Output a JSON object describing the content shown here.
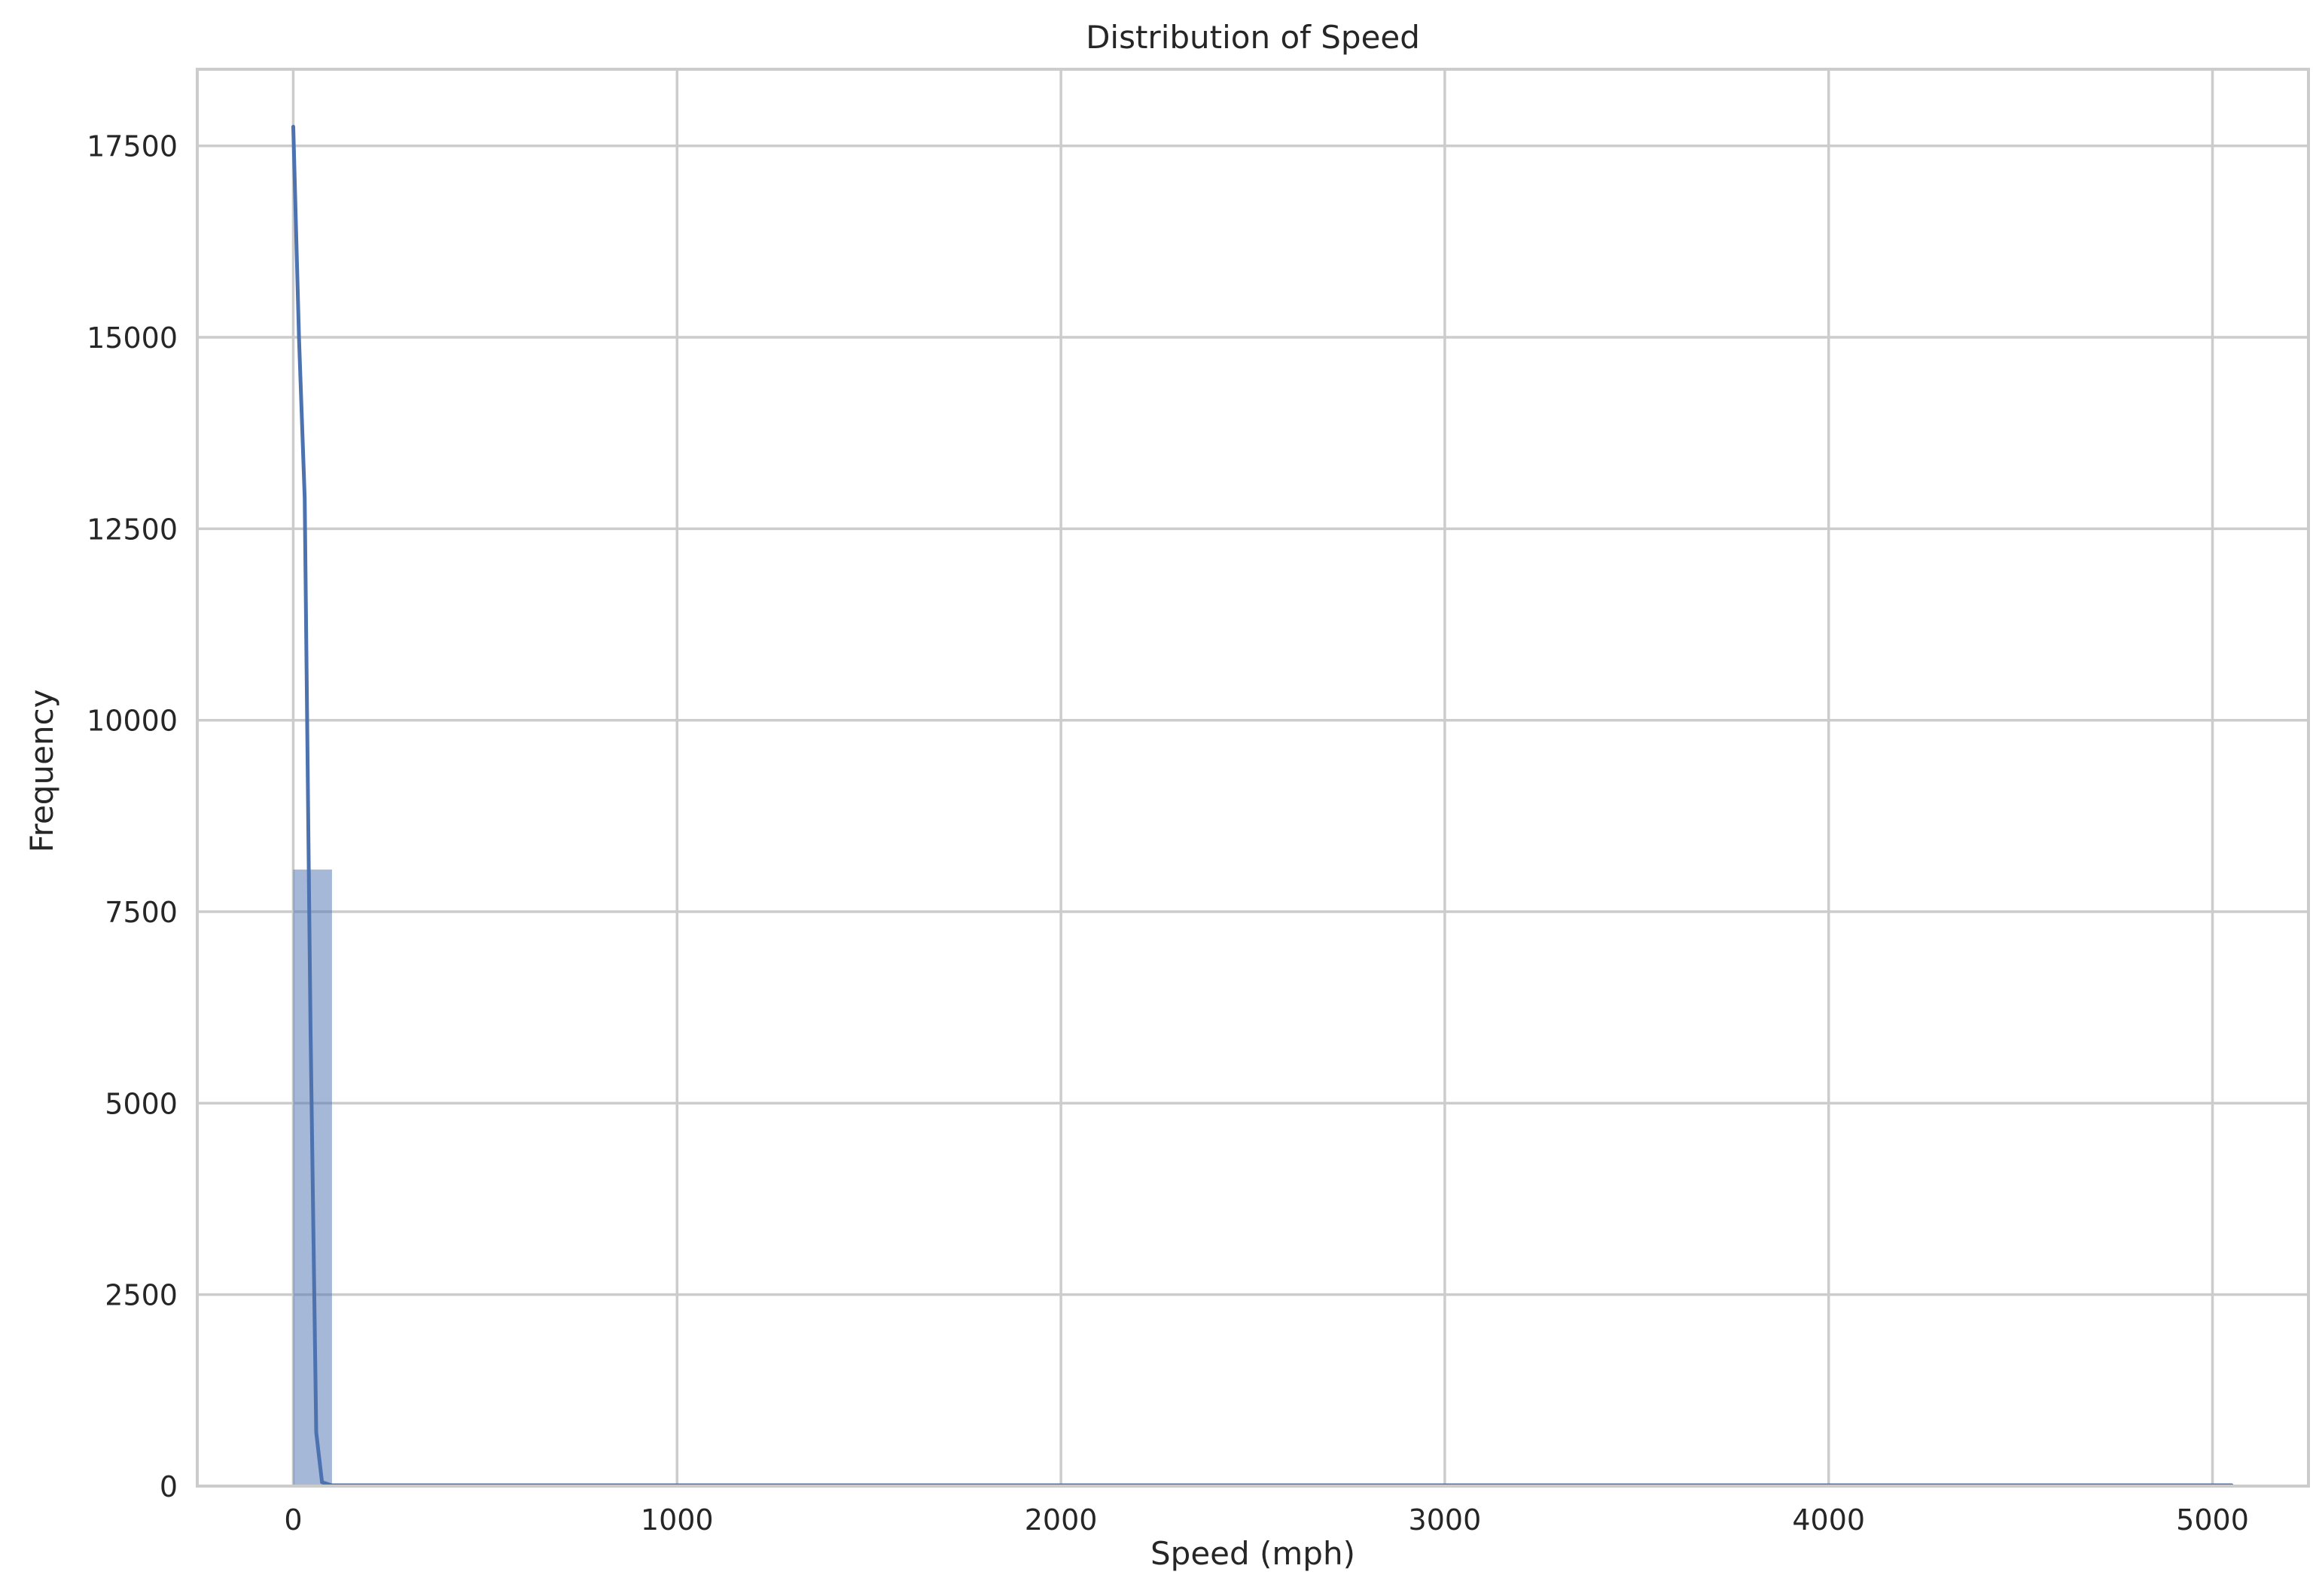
{
  "chart_data": {
    "type": "bar",
    "title": "Distribution of Speed",
    "xlabel": "Speed (mph)",
    "ylabel": "Frequency",
    "xlim": [
      -250,
      5250
    ],
    "ylim": [
      0,
      18500
    ],
    "xticks": [
      0,
      1000,
      2000,
      3000,
      4000,
      5000
    ],
    "yticks": [
      0,
      2500,
      5000,
      7500,
      10000,
      12500,
      15000,
      17500
    ],
    "grid": true,
    "bars": [
      {
        "x0": 0,
        "x1": 101,
        "count": 8050
      },
      {
        "x0": 101,
        "x1": 5050,
        "count": 15
      }
    ],
    "kde": {
      "x": [
        0,
        15,
        30,
        45,
        60,
        75,
        100,
        200,
        500,
        1000,
        2000,
        3000,
        4000,
        5050
      ],
      "y": [
        17750,
        15000,
        12900,
        6000,
        700,
        50,
        10,
        10,
        10,
        10,
        10,
        10,
        10,
        10
      ]
    },
    "colors": {
      "bar": "#4c72b0",
      "line": "#4c72b0",
      "grid": "#cccccc"
    }
  }
}
